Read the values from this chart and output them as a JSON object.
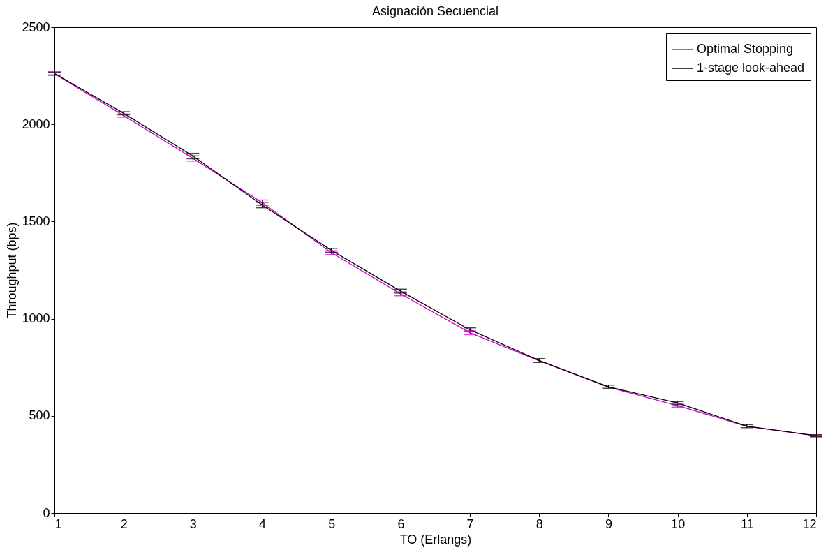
{
  "chart_data": {
    "type": "line",
    "title": "Asignación Secuencial",
    "xlabel": "TO (Erlangs)",
    "ylabel": "Throughput (bps)",
    "x": [
      1,
      2,
      3,
      4,
      5,
      6,
      7,
      8,
      9,
      10,
      11,
      12
    ],
    "series": [
      {
        "name": "Optimal Stopping",
        "color": "#cc00cc",
        "values": [
          2260,
          2045,
          1825,
          1597,
          1340,
          1128,
          928,
          783,
          648,
          553,
          446,
          397
        ],
        "errors": [
          8,
          8,
          14,
          14,
          10,
          10,
          10,
          null,
          null,
          8,
          null,
          5
        ]
      },
      {
        "name": "1-stage look-ahead",
        "color": "#000000",
        "values": [
          2262,
          2057,
          1837,
          1585,
          1352,
          1142,
          943,
          785,
          650,
          566,
          447,
          398
        ],
        "errors": [
          8,
          8,
          14,
          14,
          10,
          10,
          10,
          10,
          8,
          8,
          8,
          5
        ]
      }
    ],
    "xlim": [
      1,
      12
    ],
    "xticks": [
      1,
      2,
      3,
      4,
      5,
      6,
      7,
      8,
      9,
      10,
      11,
      12
    ],
    "ylim": [
      0,
      2500
    ],
    "yticks": [
      0,
      500,
      1000,
      1500,
      2000,
      2500
    ],
    "grid": false,
    "legend": "top right",
    "marker": "none",
    "line_style": "solid"
  }
}
